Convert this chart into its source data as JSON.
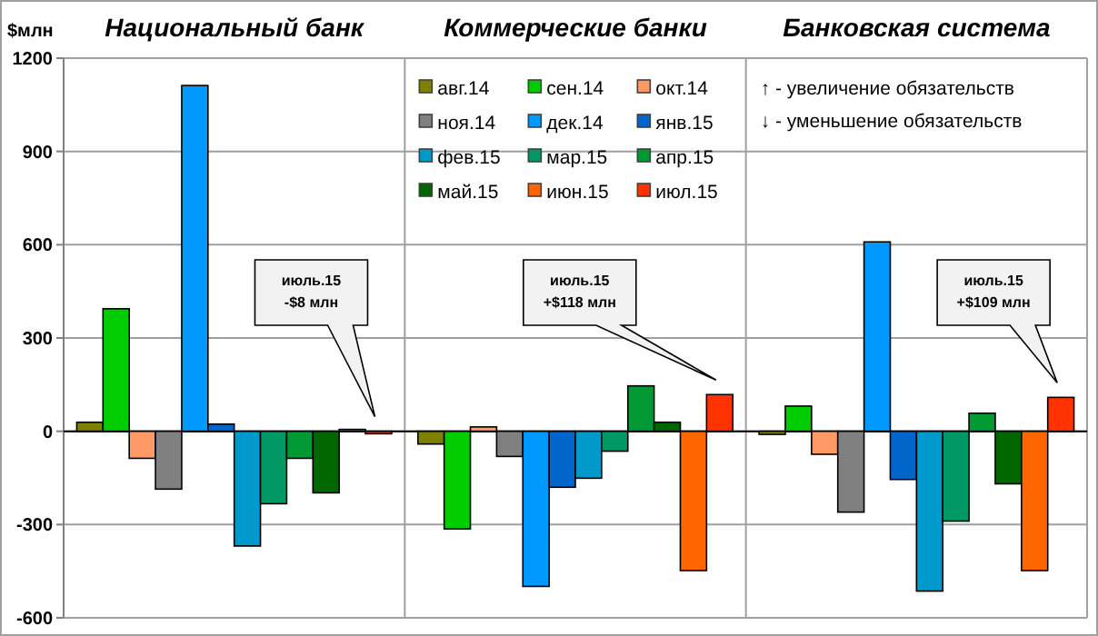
{
  "chart_data": {
    "type": "bar",
    "ylabel": "$млн",
    "categories": [
      "Национальный банк",
      "Коммерческие банки",
      "Банковская система"
    ],
    "series": [
      {
        "name": "авг.14",
        "color": "#808000",
        "values": [
          29,
          -41,
          -10
        ]
      },
      {
        "name": "сен.14",
        "color": "#00cc00",
        "values": [
          394,
          -314,
          81
        ]
      },
      {
        "name": "окт.14",
        "color": "#ff9966",
        "values": [
          -87,
          14,
          -74
        ]
      },
      {
        "name": "ноя.14",
        "color": "#808080",
        "values": [
          -186,
          -81,
          -260
        ]
      },
      {
        "name": "дек.14",
        "color": "#0099ff",
        "values": [
          1112,
          -499,
          609
        ]
      },
      {
        "name": "янв.15",
        "color": "#0066cc",
        "values": [
          23,
          -180,
          -155
        ]
      },
      {
        "name": "фев.15",
        "color": "#0099cc",
        "values": [
          -369,
          -151,
          -514
        ]
      },
      {
        "name": "мар.15",
        "color": "#009966",
        "values": [
          -233,
          -64,
          -289
        ]
      },
      {
        "name": "апр.15",
        "color": "#009933",
        "values": [
          -87,
          146,
          58
        ]
      },
      {
        "name": "май.15",
        "color": "#006600",
        "values": [
          -198,
          29,
          -169
        ]
      },
      {
        "name": "июн.15",
        "color": "#ff6600",
        "values": [
          6,
          -448,
          -448
        ]
      },
      {
        "name": "июл.15",
        "color": "#ff3300",
        "values": [
          -8,
          118,
          109
        ]
      }
    ],
    "ylim": [
      -600,
      1200
    ],
    "yticks": [
      -600,
      -300,
      0,
      300,
      600,
      900,
      1200
    ],
    "grid": true,
    "legend": "top",
    "annotations": [
      "июль.15\n-$8 млн",
      "июль.15\n+$118 млн",
      "июль.15\n+$109 млн",
      "↑ - увеличение  обязательств",
      "↓ - уменьшение  обязательств"
    ]
  }
}
